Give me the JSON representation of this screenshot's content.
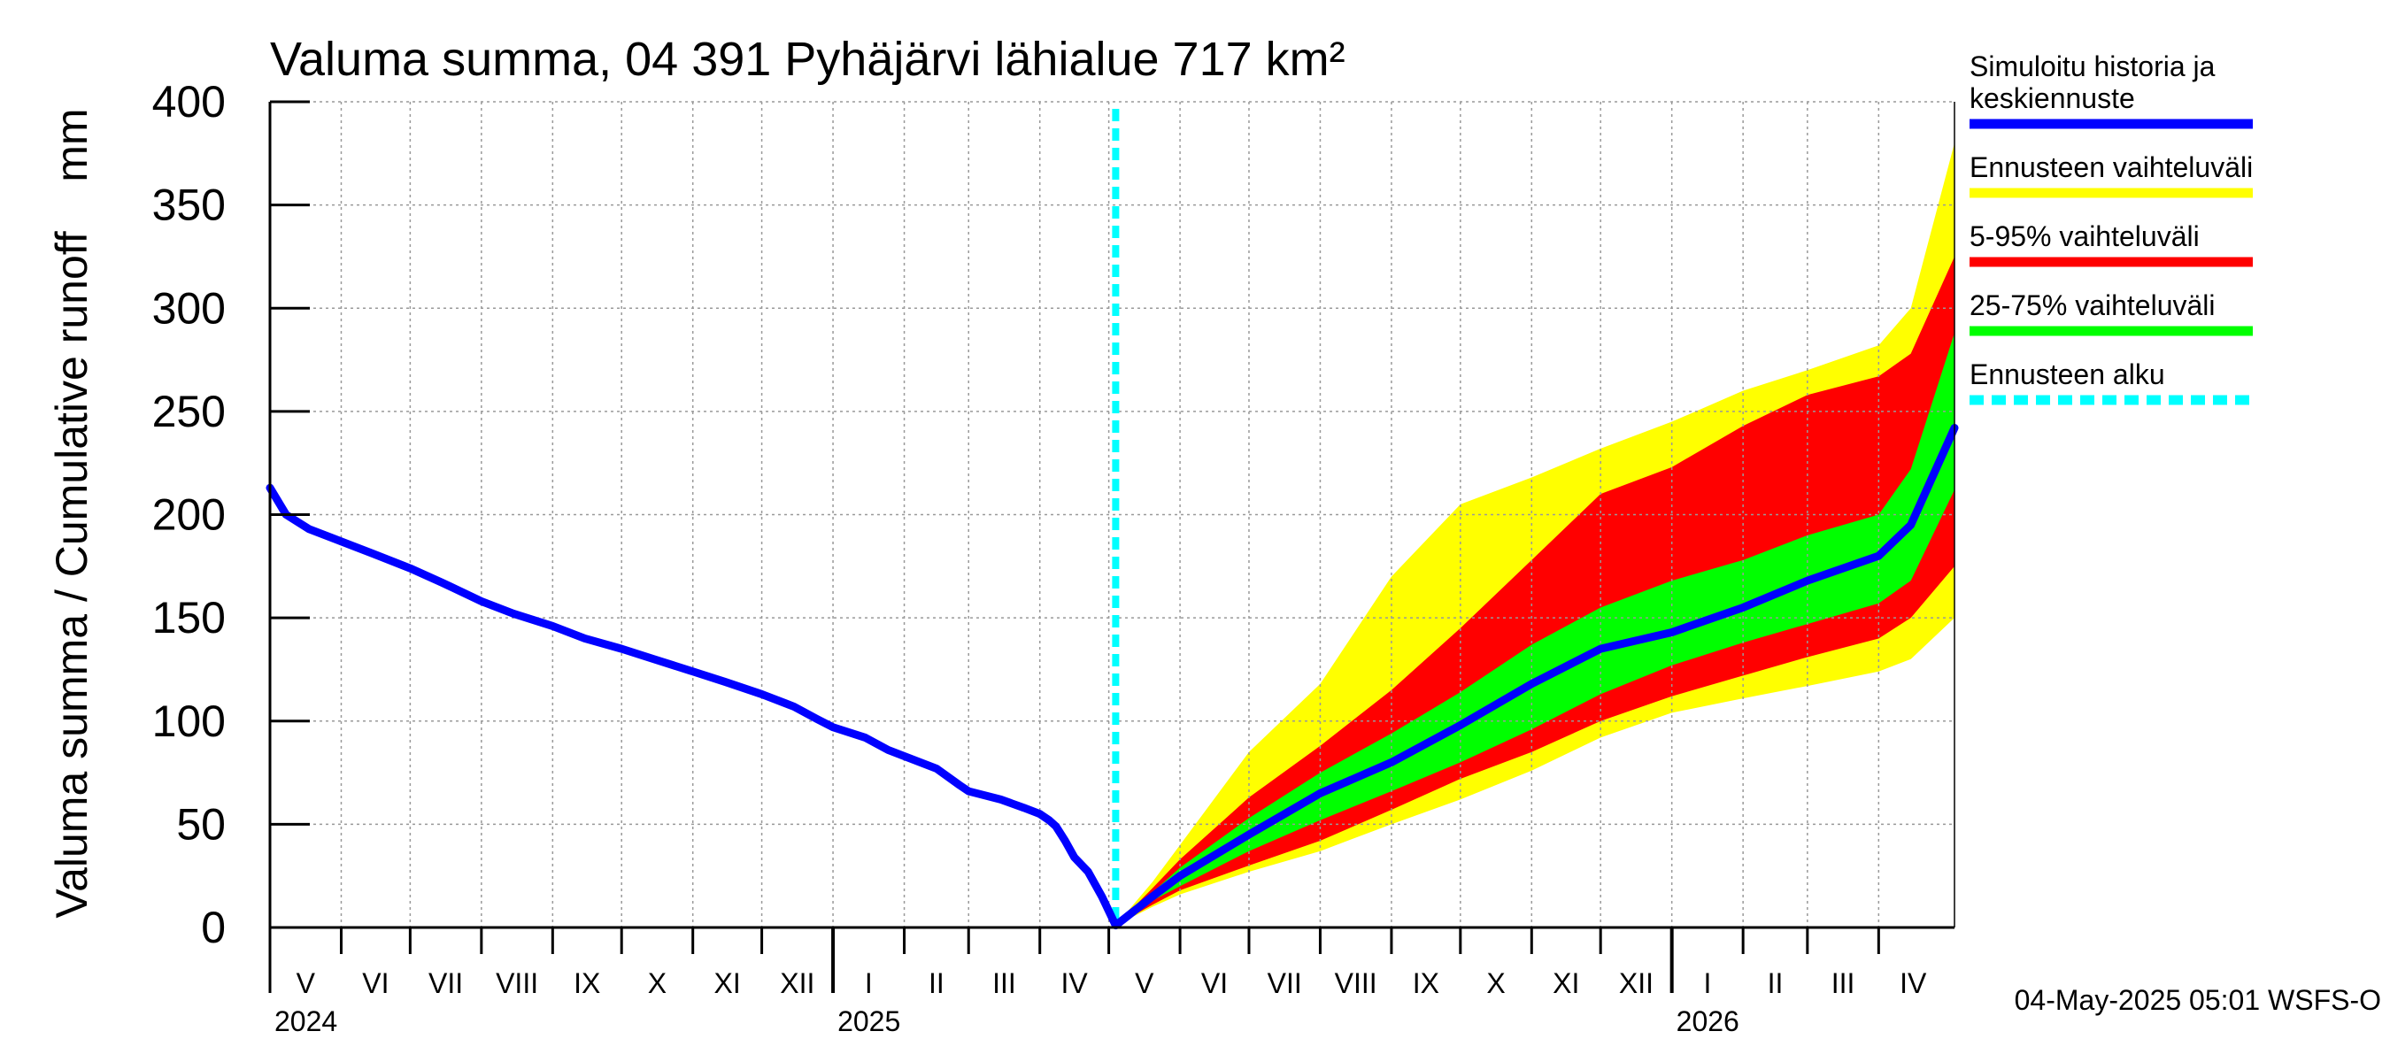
{
  "title": "Valuma summa, 04 391 Pyhäjärvi lähialue 717 km²",
  "timestamp": "04-May-2025 05:01 WSFS-O",
  "colors": {
    "history": "#0000ff",
    "range_full": "#ffff00",
    "range_5_95": "#ff0000",
    "range_25_75": "#00ff00",
    "forecast_start": "#00ffff",
    "grid": "#999999"
  },
  "legend": [
    {
      "label_lines": [
        "Simuloitu historia ja",
        "keskiennuste"
      ],
      "color": "#0000ff",
      "style": "solid"
    },
    {
      "label_lines": [
        "Ennusteen vaihteluväli"
      ],
      "color": "#ffff00",
      "style": "solid"
    },
    {
      "label_lines": [
        "5-95% vaihteluväli"
      ],
      "color": "#ff0000",
      "style": "solid"
    },
    {
      "label_lines": [
        "25-75% vaihteluväli"
      ],
      "color": "#00ff00",
      "style": "solid"
    },
    {
      "label_lines": [
        "Ennusteen alku"
      ],
      "color": "#00ffff",
      "style": "dashed"
    }
  ],
  "chart_data": {
    "type": "area",
    "ylabel": "Valuma summa / Cumulative runoff    mm",
    "ylim": [
      0,
      400
    ],
    "yticks": [
      0,
      50,
      100,
      150,
      200,
      250,
      300,
      350,
      400
    ],
    "xlim": [
      "2024-05-01",
      "2026-05-04"
    ],
    "forecast_start": "2025-05-04",
    "grid": true,
    "legend_position": "right",
    "x_month_labels": [
      {
        "label": "V",
        "start": "2024-05-01",
        "end": "2024-06-01"
      },
      {
        "label": "VI",
        "start": "2024-06-01",
        "end": "2024-07-01"
      },
      {
        "label": "VII",
        "start": "2024-07-01",
        "end": "2024-08-01"
      },
      {
        "label": "VIII",
        "start": "2024-08-01",
        "end": "2024-09-01"
      },
      {
        "label": "IX",
        "start": "2024-09-01",
        "end": "2024-10-01"
      },
      {
        "label": "X",
        "start": "2024-10-01",
        "end": "2024-11-01"
      },
      {
        "label": "XI",
        "start": "2024-11-01",
        "end": "2024-12-01"
      },
      {
        "label": "XII",
        "start": "2024-12-01",
        "end": "2025-01-01"
      },
      {
        "label": "I",
        "start": "2025-01-01",
        "end": "2025-02-01"
      },
      {
        "label": "II",
        "start": "2025-02-01",
        "end": "2025-03-01"
      },
      {
        "label": "III",
        "start": "2025-03-01",
        "end": "2025-04-01"
      },
      {
        "label": "IV",
        "start": "2025-04-01",
        "end": "2025-05-01"
      },
      {
        "label": "V",
        "start": "2025-05-01",
        "end": "2025-06-01"
      },
      {
        "label": "VI",
        "start": "2025-06-01",
        "end": "2025-07-01"
      },
      {
        "label": "VII",
        "start": "2025-07-01",
        "end": "2025-08-01"
      },
      {
        "label": "VIII",
        "start": "2025-08-01",
        "end": "2025-09-01"
      },
      {
        "label": "IX",
        "start": "2025-09-01",
        "end": "2025-10-01"
      },
      {
        "label": "X",
        "start": "2025-10-01",
        "end": "2025-11-01"
      },
      {
        "label": "XI",
        "start": "2025-11-01",
        "end": "2025-12-01"
      },
      {
        "label": "XII",
        "start": "2025-12-01",
        "end": "2026-01-01"
      },
      {
        "label": "I",
        "start": "2026-01-01",
        "end": "2026-02-01"
      },
      {
        "label": "II",
        "start": "2026-02-01",
        "end": "2026-03-01"
      },
      {
        "label": "III",
        "start": "2026-03-01",
        "end": "2026-04-01"
      },
      {
        "label": "IV",
        "start": "2026-04-01",
        "end": "2026-05-01"
      }
    ],
    "x_year_labels": [
      {
        "label": "2024",
        "date": "2024-05-01"
      },
      {
        "label": "2025",
        "date": "2025-01-01"
      },
      {
        "label": "2026",
        "date": "2026-01-01"
      }
    ],
    "history": {
      "name": "Simuloitu historia ja keskiennuste",
      "points": [
        [
          "2024-05-01",
          213
        ],
        [
          "2024-05-08",
          200
        ],
        [
          "2024-05-18",
          193
        ],
        [
          "2024-06-01",
          187
        ],
        [
          "2024-06-15",
          181
        ],
        [
          "2024-07-01",
          174
        ],
        [
          "2024-07-15",
          167
        ],
        [
          "2024-08-01",
          158
        ],
        [
          "2024-08-15",
          152
        ],
        [
          "2024-09-01",
          146
        ],
        [
          "2024-09-15",
          140
        ],
        [
          "2024-10-01",
          135
        ],
        [
          "2024-10-15",
          130
        ],
        [
          "2024-11-01",
          124
        ],
        [
          "2024-11-15",
          119
        ],
        [
          "2024-12-01",
          113
        ],
        [
          "2024-12-15",
          107
        ],
        [
          "2024-12-25",
          101
        ],
        [
          "2025-01-01",
          97
        ],
        [
          "2025-01-15",
          92
        ],
        [
          "2025-01-25",
          86
        ],
        [
          "2025-02-01",
          83
        ],
        [
          "2025-02-15",
          77
        ],
        [
          "2025-02-25",
          69
        ],
        [
          "2025-03-01",
          66
        ],
        [
          "2025-03-15",
          62
        ],
        [
          "2025-03-25",
          58
        ],
        [
          "2025-04-01",
          55
        ],
        [
          "2025-04-05",
          52
        ],
        [
          "2025-04-08",
          49
        ],
        [
          "2025-04-12",
          42
        ],
        [
          "2025-04-16",
          34
        ],
        [
          "2025-04-22",
          27
        ],
        [
          "2025-04-28",
          15
        ],
        [
          "2025-05-04",
          1
        ]
      ]
    },
    "forecast": {
      "x": [
        "2025-05-04",
        "2025-05-20",
        "2025-06-01",
        "2025-07-01",
        "2025-08-01",
        "2025-09-01",
        "2025-10-01",
        "2025-11-01",
        "2025-12-01",
        "2026-01-01",
        "2026-02-01",
        "2026-03-01",
        "2026-04-01",
        "2026-04-15",
        "2026-05-04"
      ],
      "median": [
        1,
        15,
        25,
        45,
        65,
        80,
        98,
        118,
        135,
        143,
        155,
        168,
        180,
        195,
        242
      ],
      "p25": [
        1,
        13,
        20,
        37,
        52,
        66,
        80,
        96,
        113,
        127,
        138,
        147,
        157,
        168,
        212
      ],
      "p75": [
        1,
        17,
        29,
        53,
        75,
        94,
        114,
        137,
        155,
        168,
        178,
        190,
        200,
        222,
        288
      ],
      "p5": [
        1,
        11,
        18,
        30,
        42,
        57,
        72,
        85,
        100,
        112,
        122,
        131,
        140,
        150,
        175
      ],
      "p95": [
        1,
        19,
        33,
        63,
        88,
        115,
        145,
        178,
        210,
        223,
        243,
        258,
        267,
        278,
        325
      ],
      "min": [
        1,
        10,
        16,
        27,
        37,
        50,
        62,
        76,
        92,
        104,
        111,
        117,
        124,
        130,
        150
      ],
      "max": [
        1,
        22,
        40,
        85,
        118,
        170,
        205,
        218,
        232,
        245,
        260,
        270,
        282,
        300,
        380
      ]
    }
  }
}
